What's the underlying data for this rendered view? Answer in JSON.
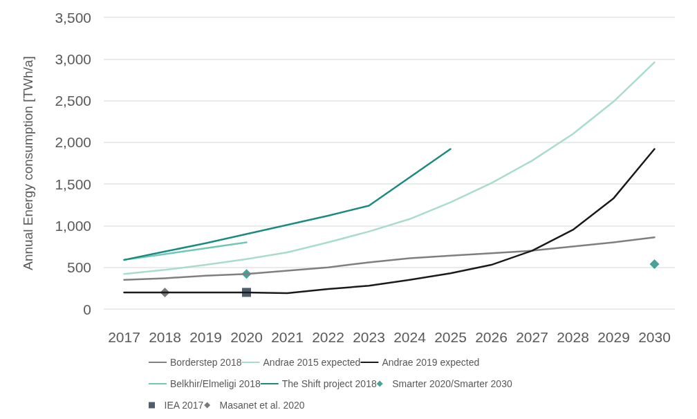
{
  "chart_data": {
    "type": "line",
    "ylabel": "Annual Energy consumption [TWh/a]",
    "categories": [
      "2017",
      "2018",
      "2019",
      "2020",
      "2021",
      "2022",
      "2023",
      "2024",
      "2025",
      "2026",
      "2027",
      "2028",
      "2029",
      "2030"
    ],
    "ylim": [
      0,
      3500
    ],
    "yticks": [
      0,
      {
        "value": 500,
        "label": "500"
      },
      {
        "value": 1000,
        "label": "1,000"
      },
      {
        "value": 1500,
        "label": "1,500"
      },
      {
        "value": 2000,
        "label": "2,000"
      },
      {
        "value": 2500,
        "label": "2,500"
      },
      {
        "value": 3000,
        "label": "3,000"
      },
      {
        "value": 3500,
        "label": "3,500"
      }
    ],
    "grid": "y",
    "legend": "bottom",
    "marker": "none",
    "line_style": "solid",
    "series": [
      {
        "name": "Borderstep 2018",
        "color": "#7f7f7f",
        "values": [
          350,
          370,
          400,
          420,
          460,
          500,
          560,
          610,
          640,
          670,
          700,
          750,
          800,
          860
        ]
      },
      {
        "name": "Andrae 2015 expected",
        "color": "#a8dccb",
        "values": [
          420,
          470,
          530,
          600,
          680,
          800,
          930,
          1080,
          1280,
          1510,
          1780,
          2100,
          2490,
          2960
        ]
      },
      {
        "name": "Andrae 2019 expected",
        "color": "#1a1a1a",
        "values": [
          200,
          200,
          200,
          200,
          190,
          240,
          280,
          350,
          430,
          530,
          700,
          950,
          1330,
          1920
        ]
      },
      {
        "name": "Belkhir/Elmeligi 2018",
        "color": "#6cc9b5",
        "values": [
          590,
          660,
          730,
          800,
          null,
          null,
          null,
          null,
          null,
          null,
          null,
          null,
          null,
          null
        ]
      },
      {
        "name": "The Shift project 2018",
        "color": "#1b8a80",
        "values": [
          590,
          690,
          790,
          900,
          1010,
          1120,
          1240,
          1580,
          1920,
          null,
          null,
          null,
          null,
          null
        ]
      },
      {
        "name": "Smarter 2020/Smarter 2030",
        "type": "scatter",
        "marker": "diamond",
        "color": "#1b8a80",
        "values": [
          null,
          null,
          null,
          420,
          null,
          null,
          null,
          null,
          null,
          null,
          null,
          null,
          null,
          540
        ]
      },
      {
        "name": "IEA 2017",
        "type": "scatter",
        "marker": "square",
        "color": "#243447",
        "values": [
          null,
          null,
          null,
          200,
          null,
          null,
          null,
          null,
          null,
          null,
          null,
          null,
          null,
          null
        ]
      },
      {
        "name": "Masanet et al. 2020",
        "type": "scatter",
        "marker": "diamond",
        "color": "#595959",
        "values": [
          null,
          200,
          null,
          null,
          null,
          null,
          null,
          null,
          null,
          null,
          null,
          null,
          null,
          null
        ]
      }
    ]
  }
}
